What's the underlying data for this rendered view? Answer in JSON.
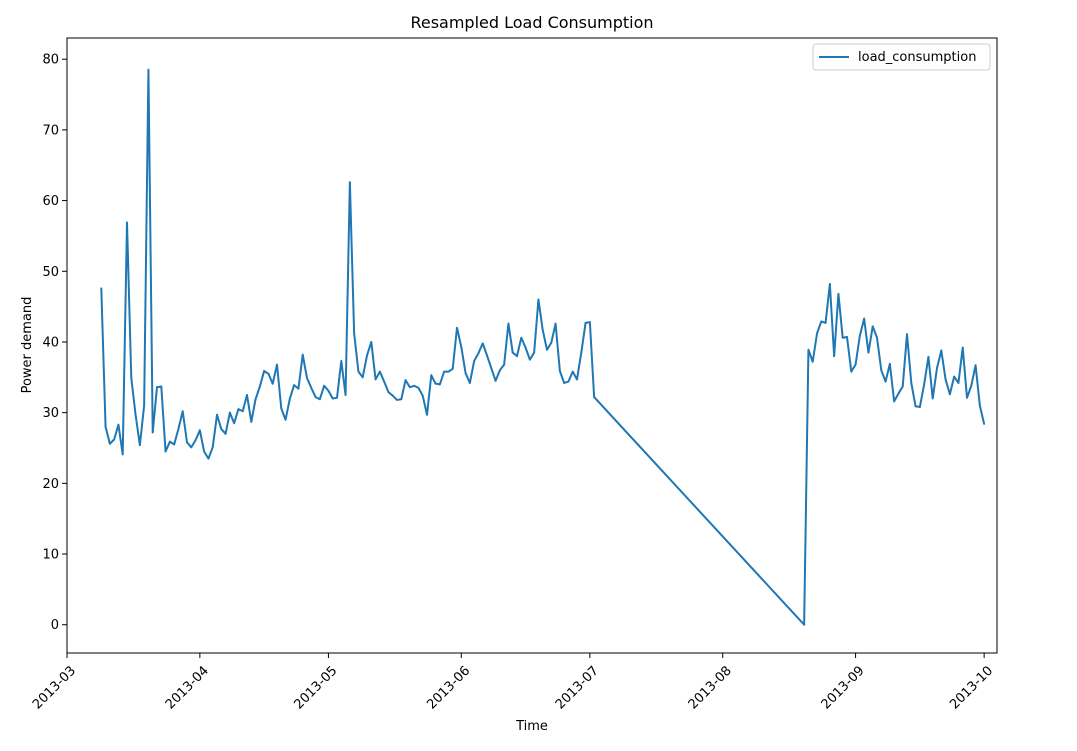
{
  "chart_data": {
    "type": "line",
    "title": "Resampled Load Consumption",
    "xlabel": "Time",
    "ylabel": "Power demand",
    "xlim": [
      "2013-03-01",
      "2013-10-04"
    ],
    "ylim": [
      -4,
      83
    ],
    "x_ticks": [
      "2013-03",
      "2013-04",
      "2013-05",
      "2013-06",
      "2013-07",
      "2013-08",
      "2013-09",
      "2013-10"
    ],
    "x_tick_dates": [
      "2013-03-01",
      "2013-04-01",
      "2013-05-01",
      "2013-06-01",
      "2013-07-01",
      "2013-08-01",
      "2013-09-01",
      "2013-10-01"
    ],
    "y_ticks": [
      0,
      10,
      20,
      30,
      40,
      50,
      60,
      70,
      80
    ],
    "legend": {
      "position": "upper right"
    },
    "grid": false,
    "colors": {
      "series": "#1f77b4",
      "axes": "#000000",
      "background": "#ffffff"
    },
    "series": [
      {
        "name": "load_consumption",
        "x": [
          "2013-03-09",
          "2013-03-10",
          "2013-03-11",
          "2013-03-12",
          "2013-03-13",
          "2013-03-14",
          "2013-03-15",
          "2013-03-16",
          "2013-03-17",
          "2013-03-18",
          "2013-03-19",
          "2013-03-20",
          "2013-03-21",
          "2013-03-22",
          "2013-03-23",
          "2013-03-24",
          "2013-03-25",
          "2013-03-26",
          "2013-03-27",
          "2013-03-28",
          "2013-03-29",
          "2013-03-30",
          "2013-03-31",
          "2013-04-01",
          "2013-04-02",
          "2013-04-03",
          "2013-04-04",
          "2013-04-05",
          "2013-04-06",
          "2013-04-07",
          "2013-04-08",
          "2013-04-09",
          "2013-04-10",
          "2013-04-11",
          "2013-04-12",
          "2013-04-13",
          "2013-04-14",
          "2013-04-15",
          "2013-04-16",
          "2013-04-17",
          "2013-04-18",
          "2013-04-19",
          "2013-04-20",
          "2013-04-21",
          "2013-04-22",
          "2013-04-23",
          "2013-04-24",
          "2013-04-25",
          "2013-04-26",
          "2013-04-27",
          "2013-04-28",
          "2013-04-29",
          "2013-04-30",
          "2013-05-01",
          "2013-05-02",
          "2013-05-03",
          "2013-05-04",
          "2013-05-05",
          "2013-05-06",
          "2013-05-07",
          "2013-05-08",
          "2013-05-09",
          "2013-05-10",
          "2013-05-11",
          "2013-05-12",
          "2013-05-13",
          "2013-05-14",
          "2013-05-15",
          "2013-05-16",
          "2013-05-17",
          "2013-05-18",
          "2013-05-19",
          "2013-05-20",
          "2013-05-21",
          "2013-05-22",
          "2013-05-23",
          "2013-05-24",
          "2013-05-25",
          "2013-05-26",
          "2013-05-27",
          "2013-05-28",
          "2013-05-29",
          "2013-05-30",
          "2013-05-31",
          "2013-06-01",
          "2013-06-02",
          "2013-06-03",
          "2013-06-04",
          "2013-06-05",
          "2013-06-06",
          "2013-06-07",
          "2013-06-08",
          "2013-06-09",
          "2013-06-10",
          "2013-06-11",
          "2013-06-12",
          "2013-06-13",
          "2013-06-14",
          "2013-06-15",
          "2013-06-16",
          "2013-06-17",
          "2013-06-18",
          "2013-06-19",
          "2013-06-20",
          "2013-06-21",
          "2013-06-22",
          "2013-06-23",
          "2013-06-24",
          "2013-06-25",
          "2013-06-26",
          "2013-06-27",
          "2013-06-28",
          "2013-06-29",
          "2013-06-30",
          "2013-07-01",
          "2013-07-02",
          "2013-08-20",
          "2013-08-21",
          "2013-08-22",
          "2013-08-23",
          "2013-08-24",
          "2013-08-25",
          "2013-08-26",
          "2013-08-27",
          "2013-08-28",
          "2013-08-29",
          "2013-08-30",
          "2013-08-31",
          "2013-09-01",
          "2013-09-02",
          "2013-09-03",
          "2013-09-04",
          "2013-09-05",
          "2013-09-06",
          "2013-09-07",
          "2013-09-08",
          "2013-09-09",
          "2013-09-10",
          "2013-09-11",
          "2013-09-12",
          "2013-09-13",
          "2013-09-14",
          "2013-09-15",
          "2013-09-16",
          "2013-09-17",
          "2013-09-18",
          "2013-09-19",
          "2013-09-20",
          "2013-09-21",
          "2013-09-22",
          "2013-09-23",
          "2013-09-24",
          "2013-09-25",
          "2013-09-26",
          "2013-09-27",
          "2013-09-28",
          "2013-09-29",
          "2013-09-30",
          "2013-10-01"
        ],
        "values": [
          47.6,
          28.0,
          25.6,
          26.2,
          28.3,
          24.1,
          56.9,
          34.9,
          29.7,
          25.4,
          31.0,
          78.5,
          27.2,
          33.6,
          33.7,
          24.5,
          25.9,
          25.5,
          27.7,
          30.2,
          25.8,
          25.1,
          26.1,
          27.5,
          24.5,
          23.5,
          25.1,
          29.7,
          27.7,
          27.0,
          30.0,
          28.5,
          30.5,
          30.2,
          32.5,
          28.7,
          31.9,
          33.7,
          35.9,
          35.5,
          34.1,
          36.8,
          30.6,
          29.0,
          32.0,
          33.9,
          33.4,
          38.2,
          34.9,
          33.5,
          32.2,
          31.9,
          33.8,
          33.1,
          32.0,
          32.1,
          37.3,
          32.5,
          62.6,
          41.2,
          35.8,
          35.0,
          38.1,
          40.0,
          34.7,
          35.8,
          34.4,
          32.9,
          32.4,
          31.8,
          31.9,
          34.6,
          33.6,
          33.8,
          33.5,
          32.4,
          29.7,
          35.3,
          34.1,
          34.0,
          35.8,
          35.8,
          36.2,
          42.0,
          39.3,
          35.6,
          34.2,
          37.3,
          38.4,
          39.8,
          38.1,
          36.3,
          34.5,
          36.0,
          36.8,
          42.6,
          38.5,
          38.0,
          40.6,
          39.2,
          37.5,
          38.5,
          46.0,
          41.7,
          38.9,
          39.9,
          42.6,
          35.9,
          34.2,
          34.4,
          35.8,
          34.7,
          38.5,
          42.7,
          42.8,
          32.2,
          0.0,
          38.9,
          37.2,
          41.2,
          42.9,
          42.7,
          48.2,
          38.0,
          46.8,
          40.6,
          40.7,
          35.8,
          36.8,
          40.9,
          43.3,
          38.5,
          42.2,
          40.6,
          36.0,
          34.4,
          36.9,
          31.6,
          32.7,
          33.7,
          41.1,
          34.2,
          30.9,
          30.8,
          34.0,
          37.9,
          32.0,
          36.3,
          38.8,
          34.7,
          32.6,
          35.1,
          34.2,
          39.2,
          32.1,
          33.8,
          36.7,
          31.0,
          28.4
        ]
      }
    ]
  }
}
